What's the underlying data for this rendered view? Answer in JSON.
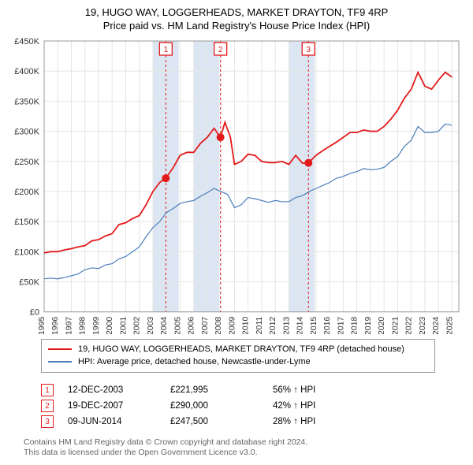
{
  "title1": "19, HUGO WAY, LOGGERHEADS, MARKET DRAYTON, TF9 4RP",
  "title2": "Price paid vs. HM Land Registry's House Price Index (HPI)",
  "chart": {
    "type": "line",
    "x_years": [
      1995,
      1996,
      1997,
      1998,
      1999,
      2000,
      2001,
      2002,
      2003,
      2004,
      2005,
      2006,
      2007,
      2008,
      2009,
      2010,
      2011,
      2012,
      2013,
      2014,
      2015,
      2016,
      2017,
      2018,
      2019,
      2020,
      2021,
      2022,
      2023,
      2024,
      2025
    ],
    "xlim": [
      1995,
      2025.5
    ],
    "ylim": [
      0,
      450000
    ],
    "ytick_step": 50000,
    "ytick_labels": [
      "£0",
      "£50K",
      "£100K",
      "£150K",
      "£200K",
      "£250K",
      "£300K",
      "£350K",
      "£400K",
      "£450K"
    ],
    "background_color": "#ffffff",
    "grid_color": "#e5e5e5",
    "shaded_band_color": "#dce6f2",
    "shaded_bands": [
      [
        2003.0,
        2004.9
      ],
      [
        2006.0,
        2007.9
      ],
      [
        2013.0,
        2014.9
      ]
    ],
    "series": [
      {
        "name": "property",
        "color": "#e31a1c",
        "width": 1.8,
        "pts": [
          [
            1995.0,
            98000
          ],
          [
            1995.5,
            100000
          ],
          [
            1996.0,
            100000
          ],
          [
            1996.5,
            103000
          ],
          [
            1997.0,
            105000
          ],
          [
            1997.5,
            108000
          ],
          [
            1998.0,
            110000
          ],
          [
            1998.5,
            118000
          ],
          [
            1999.0,
            120000
          ],
          [
            1999.5,
            126000
          ],
          [
            2000.0,
            130000
          ],
          [
            2000.5,
            145000
          ],
          [
            2001.0,
            148000
          ],
          [
            2001.5,
            155000
          ],
          [
            2002.0,
            160000
          ],
          [
            2002.5,
            178000
          ],
          [
            2003.0,
            200000
          ],
          [
            2003.5,
            215000
          ],
          [
            2003.95,
            221995
          ],
          [
            2004.5,
            240000
          ],
          [
            2005.0,
            260000
          ],
          [
            2005.5,
            265000
          ],
          [
            2006.0,
            265000
          ],
          [
            2006.5,
            280000
          ],
          [
            2007.0,
            290000
          ],
          [
            2007.5,
            305000
          ],
          [
            2007.97,
            290000
          ],
          [
            2008.3,
            315000
          ],
          [
            2008.7,
            290000
          ],
          [
            2009.0,
            245000
          ],
          [
            2009.5,
            250000
          ],
          [
            2010.0,
            262000
          ],
          [
            2010.5,
            260000
          ],
          [
            2011.0,
            250000
          ],
          [
            2011.5,
            248000
          ],
          [
            2012.0,
            248000
          ],
          [
            2012.5,
            250000
          ],
          [
            2013.0,
            245000
          ],
          [
            2013.5,
            260000
          ],
          [
            2014.0,
            247000
          ],
          [
            2014.44,
            247500
          ],
          [
            2015.0,
            260000
          ],
          [
            2015.5,
            268000
          ],
          [
            2016.0,
            275000
          ],
          [
            2016.5,
            282000
          ],
          [
            2017.0,
            290000
          ],
          [
            2017.5,
            298000
          ],
          [
            2018.0,
            298000
          ],
          [
            2018.5,
            302000
          ],
          [
            2019.0,
            300000
          ],
          [
            2019.5,
            300000
          ],
          [
            2020.0,
            308000
          ],
          [
            2020.5,
            320000
          ],
          [
            2021.0,
            335000
          ],
          [
            2021.5,
            355000
          ],
          [
            2022.0,
            370000
          ],
          [
            2022.5,
            398000
          ],
          [
            2023.0,
            375000
          ],
          [
            2023.5,
            370000
          ],
          [
            2024.0,
            385000
          ],
          [
            2024.5,
            398000
          ],
          [
            2025.0,
            390000
          ]
        ]
      },
      {
        "name": "hpi",
        "color": "#4a7ebb",
        "width": 1.2,
        "pts": [
          [
            1995.0,
            55000
          ],
          [
            1995.5,
            56000
          ],
          [
            1996.0,
            55000
          ],
          [
            1996.5,
            57000
          ],
          [
            1997.0,
            60000
          ],
          [
            1997.5,
            63000
          ],
          [
            1998.0,
            70000
          ],
          [
            1998.5,
            73000
          ],
          [
            1999.0,
            72000
          ],
          [
            1999.5,
            78000
          ],
          [
            2000.0,
            80000
          ],
          [
            2000.5,
            88000
          ],
          [
            2001.0,
            92000
          ],
          [
            2001.5,
            100000
          ],
          [
            2002.0,
            108000
          ],
          [
            2002.5,
            125000
          ],
          [
            2003.0,
            140000
          ],
          [
            2003.5,
            150000
          ],
          [
            2004.0,
            165000
          ],
          [
            2004.5,
            172000
          ],
          [
            2005.0,
            180000
          ],
          [
            2005.5,
            183000
          ],
          [
            2006.0,
            185000
          ],
          [
            2006.5,
            192000
          ],
          [
            2007.0,
            198000
          ],
          [
            2007.5,
            205000
          ],
          [
            2008.0,
            200000
          ],
          [
            2008.5,
            195000
          ],
          [
            2009.0,
            173000
          ],
          [
            2009.5,
            178000
          ],
          [
            2010.0,
            190000
          ],
          [
            2010.5,
            188000
          ],
          [
            2011.0,
            185000
          ],
          [
            2011.5,
            182000
          ],
          [
            2012.0,
            185000
          ],
          [
            2012.5,
            183000
          ],
          [
            2013.0,
            183000
          ],
          [
            2013.5,
            190000
          ],
          [
            2014.0,
            193000
          ],
          [
            2014.5,
            200000
          ],
          [
            2015.0,
            205000
          ],
          [
            2015.5,
            210000
          ],
          [
            2016.0,
            215000
          ],
          [
            2016.5,
            222000
          ],
          [
            2017.0,
            225000
          ],
          [
            2017.5,
            230000
          ],
          [
            2018.0,
            233000
          ],
          [
            2018.5,
            238000
          ],
          [
            2019.0,
            236000
          ],
          [
            2019.5,
            237000
          ],
          [
            2020.0,
            240000
          ],
          [
            2020.5,
            250000
          ],
          [
            2021.0,
            258000
          ],
          [
            2021.5,
            275000
          ],
          [
            2022.0,
            285000
          ],
          [
            2022.5,
            308000
          ],
          [
            2023.0,
            298000
          ],
          [
            2023.5,
            298000
          ],
          [
            2024.0,
            300000
          ],
          [
            2024.5,
            312000
          ],
          [
            2025.0,
            310000
          ]
        ]
      }
    ],
    "markers": [
      {
        "n": 1,
        "x": 2003.95,
        "y": 221995,
        "vline_color": "#e31a1c"
      },
      {
        "n": 2,
        "x": 2007.97,
        "y": 290000,
        "vline_color": "#e31a1c"
      },
      {
        "n": 3,
        "x": 2014.44,
        "y": 247500,
        "vline_color": "#e31a1c"
      }
    ],
    "marker_label_y_top": 8,
    "axis_font_size": 11
  },
  "legend": {
    "items": [
      {
        "color": "#e31a1c",
        "text": "19, HUGO WAY, LOGGERHEADS, MARKET DRAYTON, TF9 4RP (detached house)"
      },
      {
        "color": "#4a7ebb",
        "text": "HPI: Average price, detached house, Newcastle-under-Lyme"
      }
    ]
  },
  "transactions": [
    {
      "n": "1",
      "date": "12-DEC-2003",
      "price": "£221,995",
      "pct": "56% ↑ HPI"
    },
    {
      "n": "2",
      "date": "19-DEC-2007",
      "price": "£290,000",
      "pct": "42% ↑ HPI"
    },
    {
      "n": "3",
      "date": "09-JUN-2014",
      "price": "£247,500",
      "pct": "28% ↑ HPI"
    }
  ],
  "footer1": "Contains HM Land Registry data © Crown copyright and database right 2024.",
  "footer2": "This data is licensed under the Open Government Licence v3.0."
}
